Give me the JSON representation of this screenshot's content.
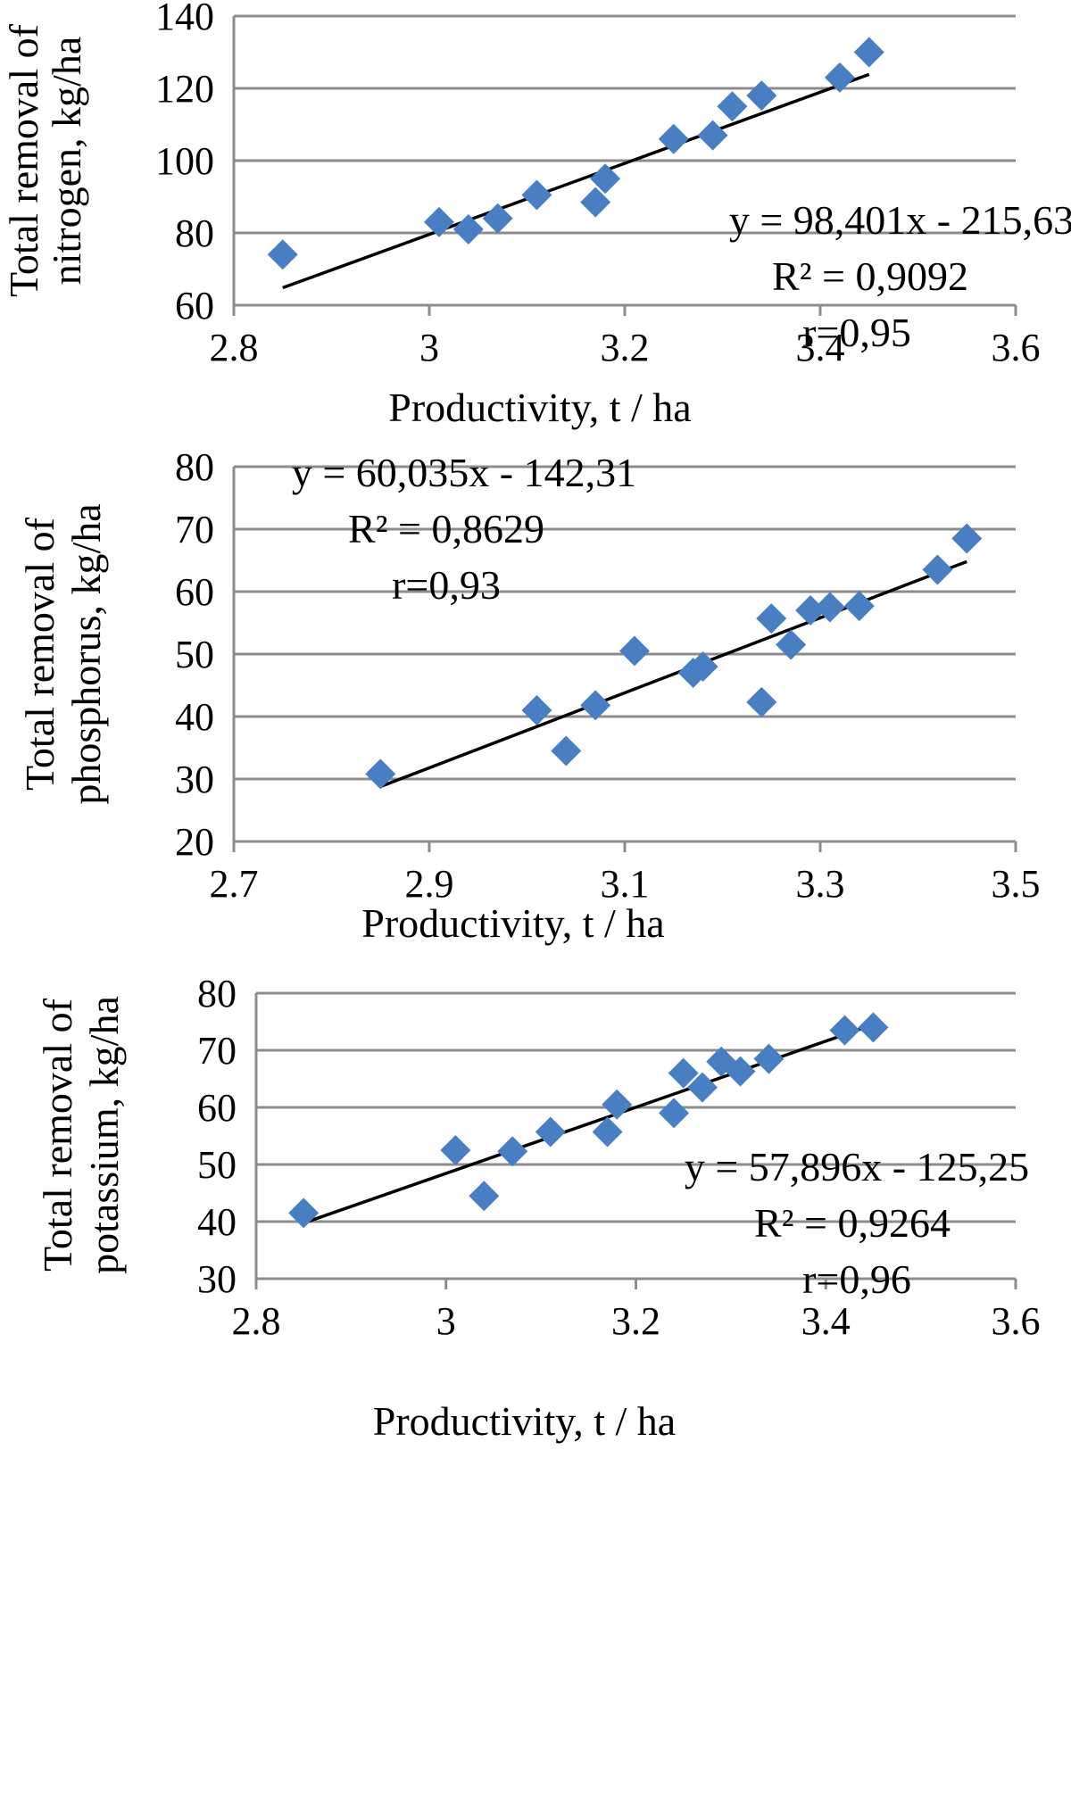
{
  "colors": {
    "marker": "#4a7ec2",
    "grid": "#8c8c8c",
    "trendline": "#000000"
  },
  "chart_data": [
    {
      "type": "scatter",
      "title": "",
      "xlabel": "Productivity, t / ha",
      "ylabel": [
        "Total removal of",
        "nitrogen, kg/ha"
      ],
      "xlim": [
        2.8,
        3.6
      ],
      "ylim": [
        60,
        140
      ],
      "xticks": [
        "2.8",
        "3",
        "3.2",
        "3.4",
        "3.6"
      ],
      "yticks": [
        "60",
        "80",
        "100",
        "120",
        "140"
      ],
      "grid": "horizontal",
      "x": [
        2.85,
        3.01,
        3.04,
        3.07,
        3.11,
        3.17,
        3.18,
        3.25,
        3.29,
        3.31,
        3.34,
        3.42,
        3.45
      ],
      "y": [
        74,
        83,
        81,
        84,
        90.5,
        88.5,
        95,
        106,
        107,
        115,
        118,
        123,
        130
      ],
      "trendline": {
        "slope": 98.401,
        "intercept": -215.63,
        "x_range": [
          2.85,
          3.45
        ]
      },
      "annotations": [
        "y = 98,401x - 215,63",
        "R² = 0,9092",
        "r=0,95"
      ]
    },
    {
      "type": "scatter",
      "title": "",
      "xlabel": "Productivity, t / ha",
      "ylabel": [
        "Total removal of",
        "phosphorus, kg/ha"
      ],
      "xlim": [
        2.7,
        3.5
      ],
      "ylim": [
        20,
        80
      ],
      "xticks": [
        "2.7",
        "2.9",
        "3.1",
        "3.3",
        "3.5"
      ],
      "yticks": [
        "20",
        "30",
        "40",
        "50",
        "60",
        "70",
        "80"
      ],
      "grid": "horizontal",
      "x": [
        2.85,
        3.01,
        3.04,
        3.07,
        3.11,
        3.17,
        3.18,
        3.24,
        3.25,
        3.27,
        3.29,
        3.31,
        3.34,
        3.42,
        3.45
      ],
      "y": [
        30.8,
        41,
        34.5,
        41.8,
        50.5,
        47,
        48,
        42.3,
        55.7,
        51.5,
        57,
        57.5,
        57.7,
        63.5,
        68.5
      ],
      "trendline": {
        "slope": 60.035,
        "intercept": -142.31,
        "x_range": [
          2.85,
          3.45
        ]
      },
      "annotations": [
        "y = 60,035x - 142,31",
        "R² = 0,8629",
        "r=0,93"
      ]
    },
    {
      "type": "scatter",
      "title": "",
      "xlabel": "Productivity, t / ha",
      "ylabel": [
        "Total removal of",
        "potassium, kg/ha"
      ],
      "xlim": [
        2.8,
        3.6
      ],
      "ylim": [
        30,
        80
      ],
      "xticks": [
        "2.8",
        "3",
        "3.2",
        "3.4",
        "3.6"
      ],
      "yticks": [
        "30",
        "40",
        "50",
        "60",
        "70",
        "80"
      ],
      "grid": "horizontal",
      "x": [
        2.85,
        3.01,
        3.04,
        3.07,
        3.11,
        3.17,
        3.18,
        3.24,
        3.25,
        3.27,
        3.29,
        3.31,
        3.34,
        3.42,
        3.45
      ],
      "y": [
        41.5,
        52.5,
        44.5,
        52.3,
        55.7,
        55.7,
        60.5,
        59,
        66,
        63.5,
        68,
        66.3,
        68.5,
        73.5,
        74
      ],
      "trendline": {
        "slope": 57.896,
        "intercept": -125.25,
        "x_range": [
          2.85,
          3.45
        ]
      },
      "annotations": [
        "y = 57,896x - 125,25",
        "R² = 0,9264",
        "r=0,96"
      ]
    }
  ]
}
